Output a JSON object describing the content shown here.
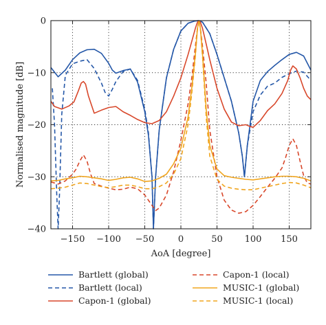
{
  "chart_data": {
    "type": "line",
    "xlabel": "AoA [degree]",
    "ylabel": "Normalised magnitude [dB]",
    "xlim": [
      -180,
      180
    ],
    "ylim": [
      -40,
      0
    ],
    "xticks": [
      -150,
      -100,
      -50,
      0,
      50,
      100,
      150
    ],
    "yticks": [
      0,
      -10,
      -20,
      -30,
      -40
    ],
    "grid": true,
    "legend_position": "bottom",
    "series": [
      {
        "name": "Bartlett (global)",
        "color": "#2457a8",
        "dash": "solid",
        "x": [
          -180,
          -170,
          -160,
          -150,
          -140,
          -130,
          -120,
          -110,
          -100,
          -95,
          -90,
          -80,
          -70,
          -60,
          -50,
          -45,
          -40,
          -38,
          -35,
          -30,
          -20,
          -10,
          0,
          10,
          20,
          25,
          30,
          40,
          50,
          60,
          70,
          80,
          85,
          88,
          92,
          100,
          110,
          120,
          130,
          140,
          150,
          160,
          170,
          180
        ],
        "y": [
          -9,
          -10.8,
          -9.5,
          -7.5,
          -6.2,
          -5.6,
          -5.5,
          -6.3,
          -8.2,
          -9.5,
          -10.1,
          -9.6,
          -9.3,
          -11.8,
          -17.5,
          -22,
          -30,
          -40,
          -30,
          -21,
          -11,
          -5.5,
          -2,
          -0.5,
          -0.05,
          0,
          -0.3,
          -2.5,
          -6.5,
          -11,
          -15.5,
          -21.5,
          -26,
          -30,
          -24,
          -15.5,
          -11.5,
          -9.8,
          -8.6,
          -7.5,
          -6.5,
          -6.1,
          -6.8,
          -9.5
        ]
      },
      {
        "name": "Bartlett (local)",
        "color": "#2457a8",
        "dash": "dashed",
        "x": [
          -178,
          -175,
          -172,
          -170,
          -168,
          -165,
          -160,
          -150,
          -140,
          -130,
          -120,
          -110,
          -105,
          -100,
          -95,
          -90,
          -80,
          -70,
          -60,
          -50,
          -45,
          -40,
          -38,
          -35,
          -30,
          -20,
          -10,
          0,
          10,
          20,
          25,
          30,
          40,
          50,
          60,
          70,
          80,
          85,
          88,
          92,
          100,
          110,
          120,
          130,
          140,
          150,
          160,
          170,
          180
        ],
        "y": [
          -13,
          -20,
          -33,
          -40,
          -33,
          -18,
          -10.5,
          -8.3,
          -7.8,
          -7.5,
          -9.2,
          -12,
          -13.8,
          -14.5,
          -13.2,
          -11.7,
          -9.8,
          -9.3,
          -11.5,
          -17,
          -21.5,
          -30,
          -40,
          -30,
          -21,
          -11,
          -5.5,
          -2,
          -0.5,
          -0.05,
          0,
          -0.3,
          -2.5,
          -6.5,
          -11,
          -15.5,
          -21.5,
          -26,
          -30,
          -24,
          -17.5,
          -14.3,
          -12.6,
          -12,
          -10.9,
          -10.2,
          -9.7,
          -9.9,
          -11.5
        ]
      },
      {
        "name": "Capon-1 (global)",
        "color": "#d8472a",
        "dash": "solid",
        "x": [
          -180,
          -175,
          -165,
          -155,
          -148,
          -142,
          -138,
          -135,
          -132,
          -128,
          -120,
          -110,
          -100,
          -90,
          -80,
          -70,
          -60,
          -50,
          -40,
          -30,
          -20,
          -10,
          0,
          10,
          15,
          20,
          23,
          25,
          27,
          30,
          35,
          40,
          50,
          60,
          70,
          80,
          90,
          95,
          100,
          110,
          120,
          130,
          140,
          148,
          152,
          155,
          160,
          165,
          170,
          175,
          180
        ],
        "y": [
          -15.5,
          -16.5,
          -17,
          -16.4,
          -15.6,
          -13.5,
          -12,
          -11.7,
          -12.2,
          -14.5,
          -17.8,
          -17.2,
          -16.7,
          -16.5,
          -17.5,
          -18.2,
          -19,
          -19.6,
          -19.8,
          -19.2,
          -17.5,
          -14.5,
          -11,
          -6.5,
          -4,
          -1.5,
          -0.3,
          0,
          -0.3,
          -1.5,
          -4.5,
          -7.5,
          -13,
          -17,
          -19.5,
          -20.2,
          -20,
          -20.3,
          -20.5,
          -19.2,
          -17.3,
          -16,
          -14,
          -11.5,
          -9.5,
          -8.7,
          -9.3,
          -11,
          -13,
          -14.5,
          -15.2
        ]
      },
      {
        "name": "Capon-1 (local)",
        "color": "#d8472a",
        "dash": "dashed",
        "x": [
          -180,
          -175,
          -170,
          -160,
          -150,
          -145,
          -140,
          -135,
          -130,
          -125,
          -120,
          -110,
          -100,
          -90,
          -80,
          -70,
          -60,
          -50,
          -40,
          -35,
          -30,
          -20,
          -10,
          0,
          10,
          15,
          20,
          23,
          25,
          27,
          30,
          35,
          40,
          50,
          60,
          70,
          80,
          90,
          100,
          110,
          120,
          130,
          140,
          145,
          150,
          155,
          160,
          165,
          170,
          175,
          180
        ],
        "y": [
          -31,
          -31.2,
          -31.4,
          -30.8,
          -29.5,
          -28.5,
          -27,
          -25.8,
          -27,
          -29.5,
          -31.3,
          -31.8,
          -32.2,
          -32.5,
          -32.4,
          -32,
          -32.3,
          -33.5,
          -35.5,
          -36.5,
          -36,
          -33.5,
          -29,
          -23,
          -16,
          -11,
          -5,
          -1.5,
          0,
          -1.5,
          -5,
          -12,
          -21,
          -30,
          -34.5,
          -36.4,
          -37,
          -36.7,
          -35.5,
          -33.8,
          -32,
          -30.3,
          -28.3,
          -26.3,
          -24,
          -22.7,
          -24,
          -27,
          -29.8,
          -31.2,
          -31.4
        ]
      },
      {
        "name": "MUSIC-1 (global)",
        "color": "#f0a51e",
        "dash": "solid",
        "x": [
          -180,
          -170,
          -160,
          -150,
          -140,
          -130,
          -120,
          -110,
          -100,
          -90,
          -80,
          -70,
          -60,
          -50,
          -40,
          -30,
          -20,
          -10,
          0,
          10,
          15,
          20,
          23,
          25,
          27,
          30,
          35,
          40,
          50,
          60,
          70,
          80,
          90,
          100,
          110,
          120,
          130,
          140,
          150,
          160,
          170,
          180
        ],
        "y": [
          -30.8,
          -30.7,
          -30.4,
          -30.2,
          -29.9,
          -30,
          -30.2,
          -30.4,
          -30.7,
          -30.5,
          -30.2,
          -30.1,
          -30.4,
          -30.9,
          -30.8,
          -30.3,
          -29.5,
          -27.5,
          -24.5,
          -18.5,
          -13,
          -6.5,
          -1.5,
          0,
          -1.5,
          -6.5,
          -17,
          -24,
          -28.5,
          -29.8,
          -30.1,
          -30.3,
          -30.5,
          -30.6,
          -30.4,
          -30.2,
          -30,
          -29.9,
          -29.9,
          -30,
          -30.3,
          -30.8
        ]
      },
      {
        "name": "MUSIC-1 (local)",
        "color": "#f0a51e",
        "dash": "dashed",
        "x": [
          -180,
          -170,
          -160,
          -150,
          -140,
          -130,
          -120,
          -110,
          -100,
          -90,
          -80,
          -70,
          -60,
          -50,
          -40,
          -30,
          -20,
          -10,
          0,
          10,
          15,
          20,
          23,
          25,
          27,
          30,
          35,
          40,
          50,
          60,
          70,
          80,
          90,
          100,
          110,
          120,
          130,
          140,
          150,
          160,
          170,
          180
        ],
        "y": [
          -32.3,
          -32.2,
          -32,
          -31.6,
          -31.2,
          -31.3,
          -31.6,
          -31.9,
          -32.1,
          -31.9,
          -31.6,
          -31.6,
          -31.9,
          -32.3,
          -32.3,
          -31.9,
          -31.2,
          -29.5,
          -26.5,
          -20,
          -14,
          -7,
          -1.6,
          0,
          -1.6,
          -7,
          -18.5,
          -26,
          -30.5,
          -31.8,
          -32.2,
          -32.4,
          -32.5,
          -32.5,
          -32.2,
          -31.9,
          -31.6,
          -31.3,
          -31.1,
          -31.2,
          -31.6,
          -32.1
        ]
      }
    ]
  }
}
